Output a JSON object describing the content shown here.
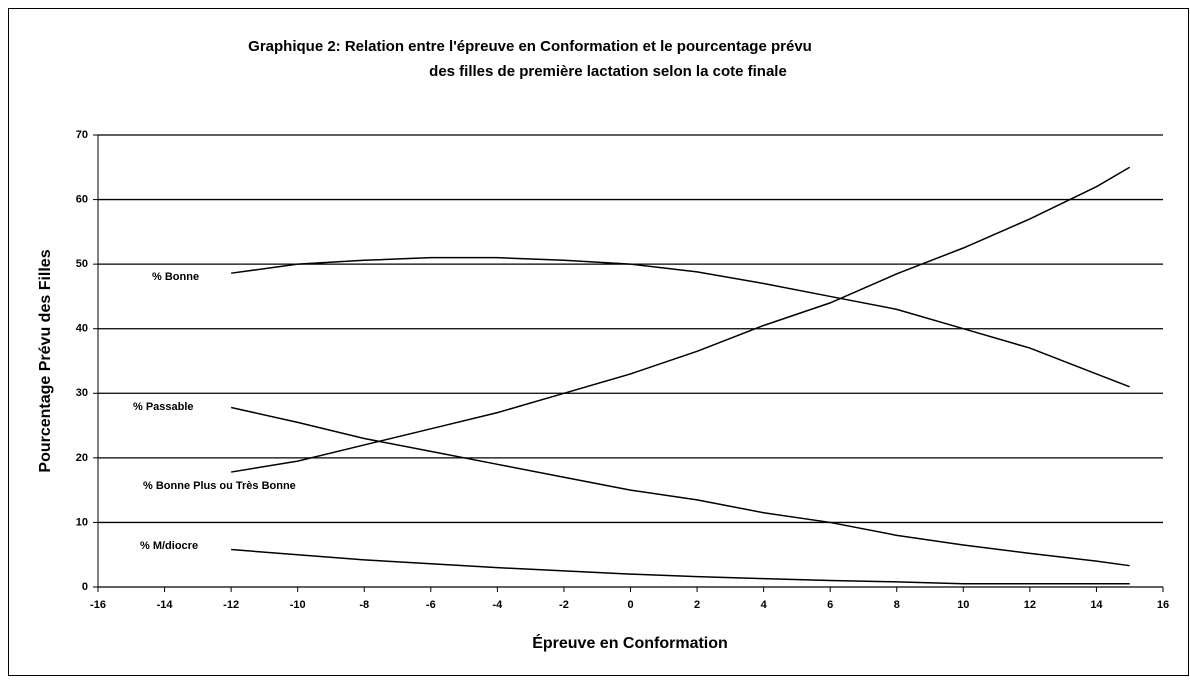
{
  "chart_data": {
    "type": "line",
    "title": [
      "Graphique 2:  Relation entre l'épreuve en Conformation et le pourcentage prévu",
      "des filles de première lactation selon la cote finale"
    ],
    "xlabel": "Épreuve en Conformation",
    "ylabel": "Pourcentage Prévu des Filles",
    "x": [
      -12,
      -10,
      -8,
      -6,
      -4,
      -2,
      0,
      2,
      4,
      6,
      8,
      10,
      12,
      14,
      15
    ],
    "series": [
      {
        "name": "% Bonne",
        "color": "#000000",
        "values": [
          48.6,
          50,
          50.6,
          51,
          51,
          50.6,
          50,
          48.8,
          47,
          45,
          43,
          40,
          37,
          33,
          31
        ]
      },
      {
        "name": "% Passable",
        "color": "#000000",
        "values": [
          27.8,
          25.5,
          23,
          21,
          19,
          17,
          15,
          13.5,
          11.5,
          10,
          8,
          6.5,
          5.2,
          4,
          3.3
        ]
      },
      {
        "name": "% Bonne Plus ou Très Bonne",
        "color": "#000000",
        "values": [
          17.8,
          19.5,
          22,
          24.5,
          27,
          30,
          33,
          36.5,
          40.5,
          44,
          48.5,
          52.5,
          57,
          62,
          65
        ]
      },
      {
        "name": "% M/diocre",
        "color": "#000000",
        "values": [
          5.8,
          5,
          4.2,
          3.6,
          3,
          2.5,
          2,
          1.6,
          1.3,
          1,
          0.8,
          0.5,
          0.5,
          0.5,
          0.5
        ]
      }
    ],
    "xlim": [
      -16,
      16
    ],
    "xticks": [
      -16,
      -14,
      -12,
      -10,
      -8,
      -6,
      -4,
      -2,
      0,
      2,
      4,
      6,
      8,
      10,
      12,
      14,
      16
    ],
    "ylim": [
      0,
      70
    ],
    "yticks": [
      0,
      10,
      20,
      30,
      40,
      50,
      60,
      70
    ],
    "grid": true
  }
}
